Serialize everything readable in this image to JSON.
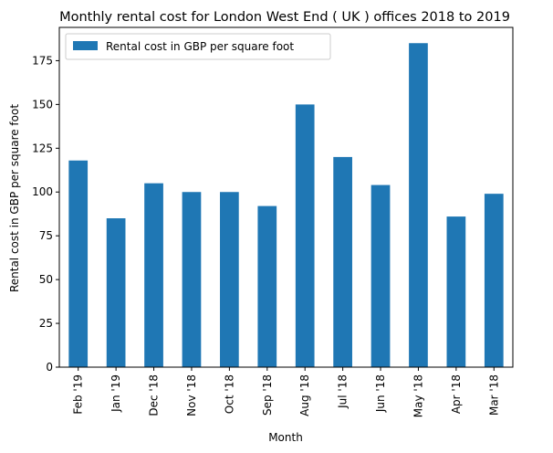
{
  "chart_data": {
    "type": "bar",
    "title": "Monthly rental cost for London West End ( UK ) offices 2018 to 2019",
    "xlabel": "Month",
    "ylabel": "Rental cost in GBP per square foot",
    "categories": [
      "Feb '19",
      "Jan '19",
      "Dec '18",
      "Nov '18",
      "Oct '18",
      "Sep '18",
      "Aug '18",
      "Jul '18",
      "Jun '18",
      "May '18",
      "Apr '18",
      "Mar '18"
    ],
    "series": [
      {
        "name": "Rental cost in GBP per square foot",
        "color": "#1f77b4",
        "values": [
          118,
          85,
          105,
          100,
          100,
          92,
          150,
          120,
          104,
          185,
          86,
          99
        ]
      }
    ],
    "ylim": [
      0,
      194
    ],
    "yticks": [
      0,
      25,
      50,
      75,
      100,
      125,
      150,
      175
    ],
    "grid": false,
    "legend_position": "top-left"
  }
}
